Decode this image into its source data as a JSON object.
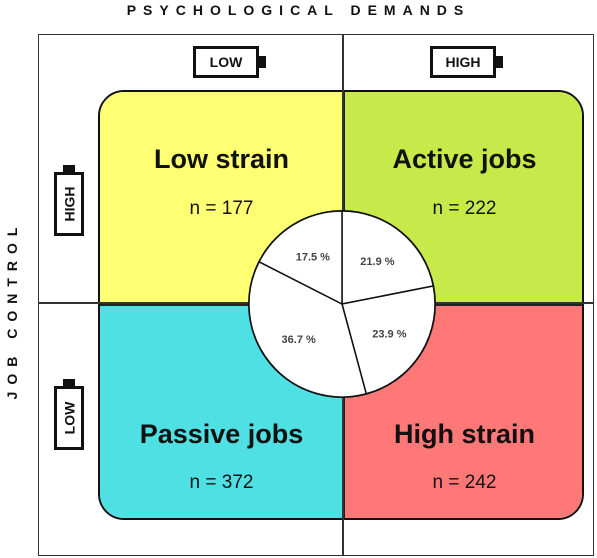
{
  "axes": {
    "top_label": "PSYCHOLOGICAL DEMANDS",
    "left_label": "JOB CONTROL"
  },
  "batteries": {
    "demand_low": "LOW",
    "demand_high": "HIGH",
    "control_high": "HIGH",
    "control_low": "LOW"
  },
  "quadrants": [
    {
      "title": "Low strain",
      "n": "n = 177",
      "color": "#ffff73"
    },
    {
      "title": "Active jobs",
      "n": "n = 222",
      "color": "#c7ea4a"
    },
    {
      "title": "Passive jobs",
      "n": "n = 372",
      "color": "#4fe0e3"
    },
    {
      "title": "High strain",
      "n": "n = 242",
      "color": "#ff7878"
    }
  ],
  "pie": {
    "slices": [
      {
        "label": "21.9 %",
        "value": 21.9
      },
      {
        "label": "23.9 %",
        "value": 23.9
      },
      {
        "label": "36.7 %",
        "value": 36.7
      },
      {
        "label": "17.5 %",
        "value": 17.5
      }
    ]
  }
}
